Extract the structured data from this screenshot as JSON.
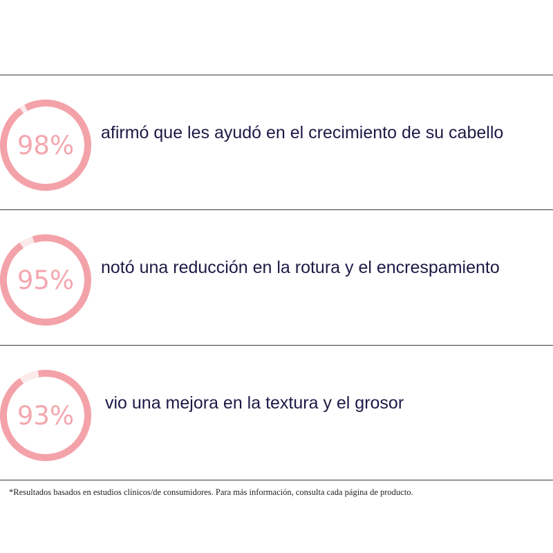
{
  "stats": [
    {
      "percent_label": "98%",
      "percent_value": 98,
      "text": "afirmó que les ayudó en el crecimiento de su cabello"
    },
    {
      "percent_label": "95%",
      "percent_value": 95,
      "text": "notó una reducción en la rotura y el encrespamiento"
    },
    {
      "percent_label": "93%",
      "percent_value": 93,
      "text": "vio una mejora en la textura y el grosor"
    }
  ],
  "footnote": "*Resultados basados en estudios clínicos/de consumidores. Para más información, consulta cada página de producto.",
  "colors": {
    "ring_fill": "#f4a2a9",
    "ring_track": "#fbeaea",
    "percent_text": "#f4a7ae",
    "body_text": "#1c1a45",
    "divider": "#3a3a3a"
  }
}
